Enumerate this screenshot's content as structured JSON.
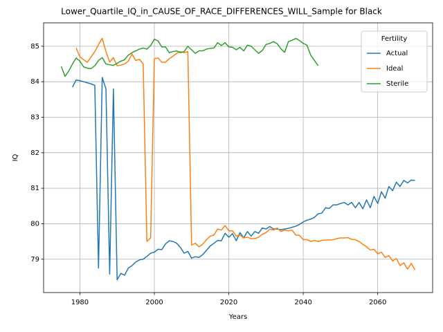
{
  "chart_data": {
    "type": "line",
    "title": "Lower_Quartile_IQ_in_CAUSE_OF_RACE_DIFFERENCES_WILL_Sample for Black",
    "x_label": "Years",
    "y_label": "IQ",
    "legend_title": "Fertility",
    "legend_position": "upper right",
    "grid": true,
    "xlim": [
      1970.25,
      2074.75
    ],
    "xticks": [
      1980,
      2000,
      2020,
      2040,
      2060
    ],
    "ylim": [
      78.06,
      85.66
    ],
    "yticks": [
      79,
      80,
      81,
      82,
      83,
      84,
      85
    ],
    "x": [
      1975,
      1976,
      1977,
      1978,
      1979,
      1980,
      1981,
      1982,
      1983,
      1984,
      1985,
      1986,
      1987,
      1988,
      1989,
      1990,
      1991,
      1992,
      1993,
      1994,
      1995,
      1996,
      1997,
      1998,
      1999,
      2000,
      2001,
      2002,
      2003,
      2004,
      2005,
      2006,
      2007,
      2008,
      2009,
      2010,
      2011,
      2012,
      2013,
      2014,
      2015,
      2016,
      2017,
      2018,
      2019,
      2020,
      2021,
      2022,
      2023,
      2024,
      2025,
      2026,
      2027,
      2028,
      2029,
      2030,
      2031,
      2032,
      2033,
      2034,
      2035,
      2036,
      2037,
      2038,
      2039,
      2040,
      2041,
      2042,
      2043,
      2044,
      2045,
      2046,
      2047,
      2048,
      2049,
      2050,
      2051,
      2052,
      2053,
      2054,
      2055,
      2056,
      2057,
      2058,
      2059,
      2060,
      2061,
      2062,
      2063,
      2064,
      2065,
      2066,
      2067,
      2068,
      2069,
      2070
    ],
    "series": [
      {
        "name": "Actual",
        "color": "#1f77b4",
        "values": [
          null,
          null,
          null,
          83.85,
          84.05,
          84.03,
          84.0,
          83.97,
          83.94,
          83.9,
          78.75,
          84.12,
          83.8,
          78.58,
          83.8,
          78.42,
          78.6,
          78.55,
          78.75,
          78.82,
          78.92,
          78.98,
          79.0,
          79.08,
          79.17,
          79.2,
          79.28,
          79.27,
          79.43,
          79.52,
          79.5,
          79.45,
          79.33,
          79.17,
          79.22,
          79.03,
          79.07,
          79.05,
          79.13,
          79.25,
          79.37,
          79.45,
          79.53,
          79.52,
          79.73,
          79.62,
          79.72,
          79.52,
          79.75,
          79.6,
          79.78,
          79.65,
          79.78,
          79.73,
          79.88,
          79.85,
          79.92,
          79.85,
          79.85,
          79.83,
          79.85,
          79.87,
          79.9,
          79.93,
          79.98,
          80.05,
          80.1,
          80.13,
          80.18,
          80.28,
          80.3,
          80.45,
          80.43,
          80.53,
          80.53,
          80.57,
          80.6,
          80.53,
          80.6,
          80.45,
          80.6,
          80.42,
          80.67,
          80.45,
          80.77,
          80.57,
          80.9,
          80.72,
          81.05,
          80.93,
          81.17,
          81.05,
          81.22,
          81.15,
          81.23,
          81.22
        ]
      },
      {
        "name": "Ideal",
        "color": "#ff7f0e",
        "values": [
          null,
          null,
          null,
          null,
          84.95,
          84.7,
          84.62,
          84.55,
          84.7,
          84.85,
          85.05,
          85.22,
          84.85,
          84.55,
          84.68,
          84.45,
          84.47,
          84.5,
          84.58,
          84.78,
          84.6,
          84.63,
          84.5,
          79.5,
          79.6,
          84.65,
          84.67,
          84.55,
          84.55,
          84.65,
          84.72,
          84.8,
          84.85,
          84.82,
          84.85,
          79.4,
          79.45,
          79.35,
          79.42,
          79.55,
          79.65,
          79.68,
          79.85,
          79.82,
          79.95,
          79.8,
          79.8,
          79.65,
          79.68,
          79.6,
          79.62,
          79.58,
          79.58,
          79.62,
          79.7,
          79.75,
          79.85,
          79.82,
          79.88,
          79.78,
          79.82,
          79.8,
          79.82,
          79.68,
          79.67,
          79.55,
          79.55,
          79.5,
          79.53,
          79.5,
          79.53,
          79.54,
          79.54,
          79.55,
          79.58,
          79.6,
          79.6,
          79.61,
          79.56,
          79.55,
          79.5,
          79.42,
          79.35,
          79.26,
          79.28,
          79.15,
          79.2,
          79.05,
          79.1,
          78.95,
          79.02,
          78.82,
          78.9,
          78.72,
          78.88,
          78.7
        ]
      },
      {
        "name": "Sterile",
        "color": "#2ca02c",
        "values": [
          84.43,
          84.15,
          84.3,
          84.5,
          84.67,
          84.58,
          84.42,
          84.38,
          84.37,
          84.45,
          84.6,
          84.68,
          84.5,
          84.48,
          84.46,
          84.52,
          84.58,
          84.62,
          84.75,
          84.82,
          84.87,
          84.92,
          84.95,
          84.92,
          85.02,
          85.2,
          85.15,
          84.98,
          84.98,
          84.82,
          84.85,
          84.87,
          84.82,
          84.85,
          85.0,
          84.9,
          84.8,
          84.87,
          84.87,
          84.92,
          84.94,
          84.95,
          85.1,
          85.02,
          85.1,
          84.98,
          84.97,
          84.9,
          84.97,
          84.87,
          85.03,
          85.0,
          84.9,
          84.8,
          84.88,
          85.05,
          85.08,
          85.13,
          85.07,
          84.93,
          84.83,
          85.13,
          85.17,
          85.22,
          85.16,
          85.08,
          85.03,
          84.75,
          84.6,
          84.45,
          null,
          null,
          null,
          null,
          null,
          null,
          null,
          null,
          null,
          null,
          null,
          null,
          null,
          null,
          null,
          null,
          null,
          null,
          null,
          null,
          null,
          null,
          null,
          null,
          null,
          null
        ]
      }
    ]
  }
}
